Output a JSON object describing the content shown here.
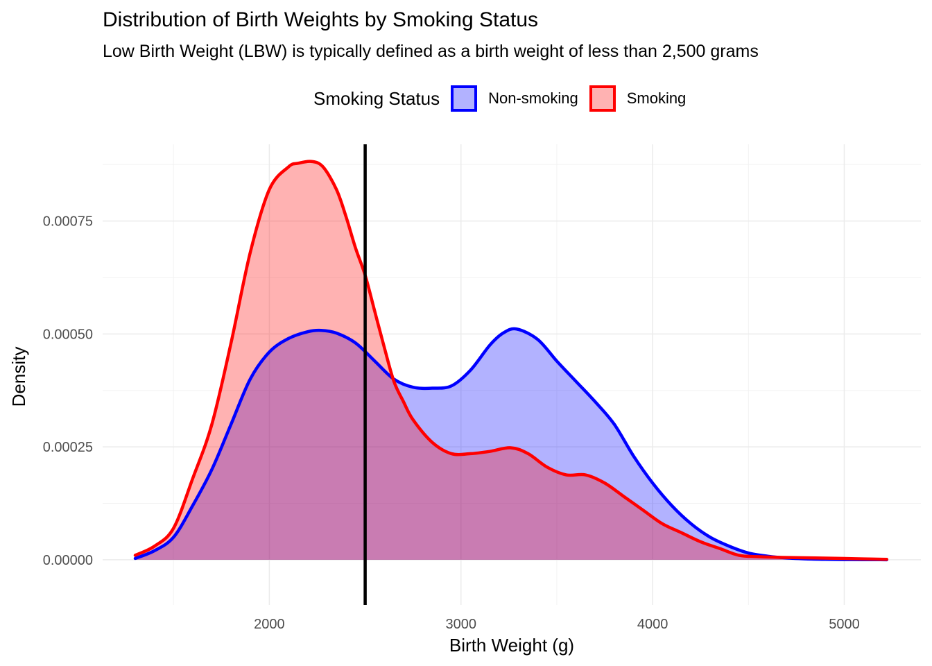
{
  "chart_data": {
    "type": "area",
    "title": "Distribution of Birth Weights by Smoking Status",
    "subtitle": "Low Birth Weight (LBW) is typically defined as a birth weight of less than 2,500 grams",
    "xlabel": "Birth Weight (g)",
    "ylabel": "Density",
    "xlim": [
      1130,
      5400
    ],
    "ylim": [
      -0.0001,
      0.00092
    ],
    "x_ticks": [
      2000,
      3000,
      4000,
      5000
    ],
    "y_ticks": [
      0,
      0.00025,
      0.0005,
      0.00075
    ],
    "y_tick_labels": [
      "0.00000",
      "0.00025",
      "0.00050",
      "0.00075"
    ],
    "grid": true,
    "legend": {
      "title": "Smoking Status",
      "position": "top"
    },
    "reference_line": {
      "x": 2500,
      "color": "#000000"
    },
    "series": [
      {
        "name": "Non-smoking",
        "color": "#0000ff",
        "fill": "#0000ff",
        "fill_opacity": 0.3,
        "x": [
          1300,
          1400,
          1500,
          1600,
          1700,
          1800,
          1900,
          2000,
          2100,
          2200,
          2270,
          2350,
          2450,
          2550,
          2650,
          2750,
          2850,
          2950,
          3050,
          3150,
          3220,
          3290,
          3400,
          3500,
          3600,
          3700,
          3800,
          3900,
          4000,
          4100,
          4200,
          4300,
          4400,
          4500,
          4600,
          4700,
          4800,
          4900,
          5000,
          5100,
          5222
        ],
        "y": [
          3e-06,
          2e-05,
          5e-05,
          0.00012,
          0.0002,
          0.0003,
          0.0004,
          0.00046,
          0.00049,
          0.000505,
          0.000508,
          0.000502,
          0.00048,
          0.00044,
          0.0004,
          0.000382,
          0.00038,
          0.000385,
          0.00042,
          0.000475,
          0.000502,
          0.000511,
          0.000488,
          0.00044,
          0.000395,
          0.00035,
          0.0003,
          0.00023,
          0.00017,
          0.00012,
          8e-05,
          5e-05,
          3e-05,
          1.5e-05,
          8e-06,
          4e-06,
          2e-06,
          1e-06,
          5e-07,
          3e-07,
          1e-07
        ]
      },
      {
        "name": "Smoking",
        "color": "#ff0000",
        "fill": "#ff0000",
        "fill_opacity": 0.3,
        "x": [
          1300,
          1400,
          1500,
          1600,
          1700,
          1800,
          1900,
          2000,
          2100,
          2150,
          2220,
          2280,
          2350,
          2400,
          2450,
          2500,
          2550,
          2600,
          2650,
          2700,
          2750,
          2850,
          2950,
          3050,
          3150,
          3260,
          3350,
          3450,
          3550,
          3650,
          3750,
          3850,
          3950,
          4050,
          4150,
          4250,
          4350,
          4450,
          4550,
          4700,
          4850,
          5000,
          5100,
          5222
        ],
        "y": [
          1e-05,
          3e-05,
          7e-05,
          0.00018,
          0.0003,
          0.00048,
          0.00068,
          0.00082,
          0.00087,
          0.000878,
          0.000882,
          0.00087,
          0.00082,
          0.00076,
          0.00069,
          0.00063,
          0.00055,
          0.00047,
          0.000395,
          0.00035,
          0.00031,
          0.00026,
          0.000235,
          0.000235,
          0.00024,
          0.000248,
          0.000235,
          0.000205,
          0.000188,
          0.000188,
          0.00017,
          0.00014,
          0.00011,
          8e-05,
          6e-05,
          4e-05,
          2.5e-05,
          1e-05,
          7e-06,
          5e-06,
          4e-06,
          3e-06,
          2e-06,
          1e-06
        ]
      }
    ]
  }
}
